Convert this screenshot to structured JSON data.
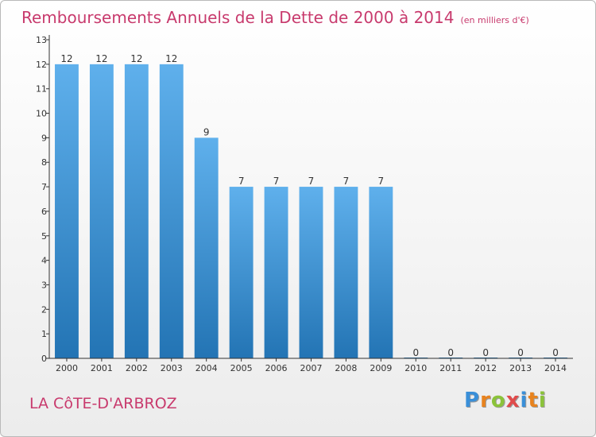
{
  "title": "Remboursements Annuels de la Dette de 2000 à 2014",
  "unit": "(en milliers d'€)",
  "commune": "LA CôTE-D'ARBROZ",
  "logo": {
    "letters": [
      "P",
      "r",
      "o",
      "x",
      "i",
      "t",
      "i"
    ],
    "colors": [
      "#3a8fd8",
      "#e8831e",
      "#8bc33a",
      "#e04b4b",
      "#3a8fd8",
      "#e8831e",
      "#8bc33a"
    ]
  },
  "colors": {
    "title": "#c83a6d",
    "bar_top": "#5fb0ec",
    "bar_bottom": "#2374b4",
    "axis": "#333333",
    "grid": "#d0d0d0"
  },
  "chart_data": {
    "type": "bar",
    "categories": [
      "2000",
      "2001",
      "2002",
      "2003",
      "2004",
      "2005",
      "2006",
      "2007",
      "2008",
      "2009",
      "2010",
      "2011",
      "2012",
      "2013",
      "2014"
    ],
    "values": [
      12,
      12,
      12,
      12,
      9,
      7,
      7,
      7,
      7,
      7,
      0,
      0,
      0,
      0,
      0
    ],
    "yticks": [
      0,
      1,
      2,
      3,
      4,
      5,
      6,
      7,
      8,
      9,
      10,
      11,
      12,
      13
    ],
    "ylim": [
      0,
      13
    ],
    "grid": false,
    "data_labels": true
  }
}
